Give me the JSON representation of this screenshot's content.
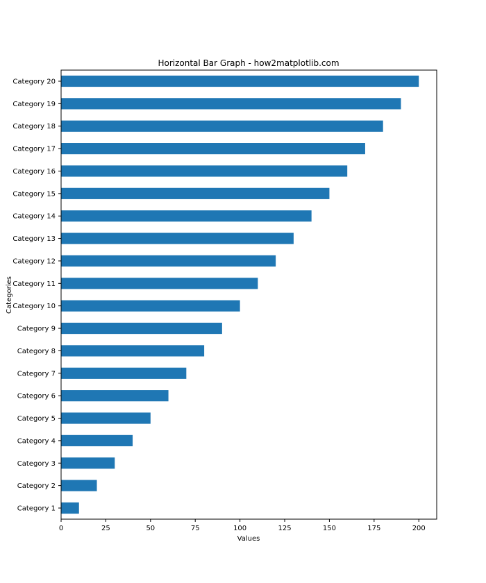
{
  "chart_data": {
    "type": "bar",
    "orientation": "horizontal",
    "title": "Horizontal Bar Graph - how2matplotlib.com",
    "xlabel": "Values",
    "ylabel": "Categories",
    "categories": [
      "Category 1",
      "Category 2",
      "Category 3",
      "Category 4",
      "Category 5",
      "Category 6",
      "Category 7",
      "Category 8",
      "Category 9",
      "Category 10",
      "Category 11",
      "Category 12",
      "Category 13",
      "Category 14",
      "Category 15",
      "Category 16",
      "Category 17",
      "Category 18",
      "Category 19",
      "Category 20"
    ],
    "values": [
      10,
      20,
      30,
      40,
      50,
      60,
      70,
      80,
      90,
      100,
      110,
      120,
      130,
      140,
      150,
      160,
      170,
      180,
      190,
      200
    ],
    "xlim": [
      0,
      210
    ],
    "xticks": [
      0,
      25,
      50,
      75,
      100,
      125,
      150,
      175,
      200
    ],
    "grid": false,
    "bar_color": "#1f77b4"
  }
}
